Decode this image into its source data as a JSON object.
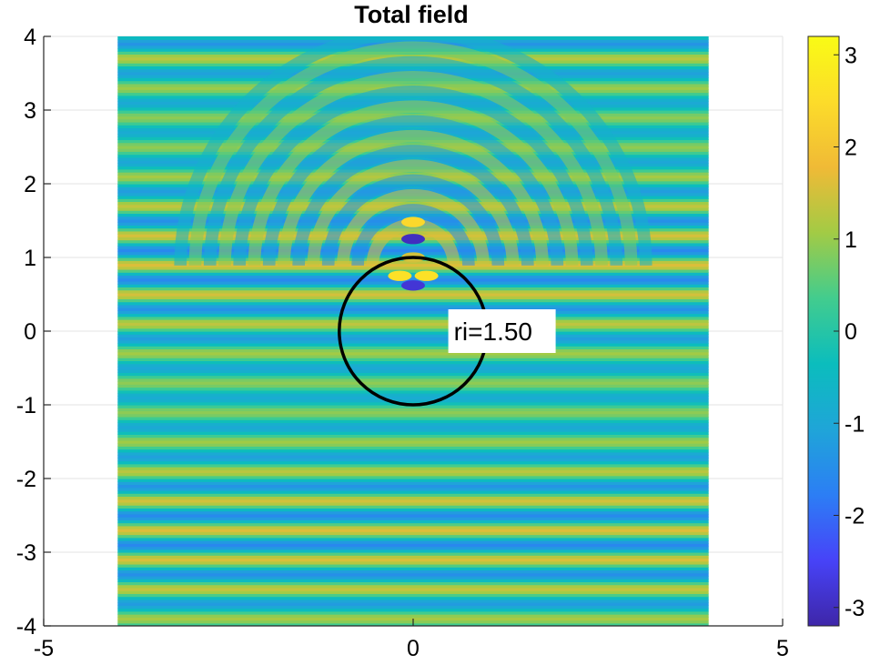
{
  "chart_data": {
    "type": "heatmap",
    "title": "Total field",
    "xlabel": "",
    "ylabel": "",
    "xlim": [
      -5,
      5
    ],
    "ylim": [
      -4,
      4
    ],
    "x_ticks": [
      -5,
      0,
      5
    ],
    "y_ticks": [
      -4,
      -3,
      -2,
      -1,
      0,
      1,
      2,
      3,
      4
    ],
    "grid": true,
    "field_extent": {
      "x": [
        -4,
        4
      ],
      "y": [
        -4,
        4
      ]
    },
    "colormap": "parula",
    "colorbar": {
      "range": [
        -3.2,
        3.2
      ],
      "ticks": [
        -3,
        -2,
        -1,
        0,
        1,
        2,
        3
      ],
      "colors": [
        "#3e26a8",
        "#4743f8",
        "#2c7ef5",
        "#1fa5d8",
        "#0bbdbd",
        "#42cc8e",
        "#a2cb45",
        "#f0ba36",
        "#fcdc2a",
        "#f9fb15"
      ]
    },
    "wave": {
      "wavelength_y": 0.4,
      "direction": "vertical (+y)"
    },
    "scatterer": {
      "shape": "circle",
      "center": [
        0,
        0
      ],
      "radius": 1,
      "edge_color": "#000000"
    },
    "annotation": {
      "text": "ri=1.50",
      "x": 0.5,
      "y": 0
    }
  }
}
